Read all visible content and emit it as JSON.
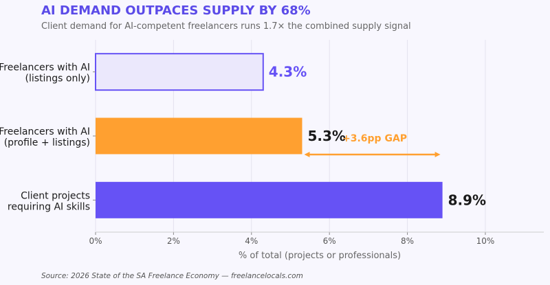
{
  "chart_data": {
    "type": "bar",
    "orientation": "horizontal",
    "title": "AI DEMAND OUTPACES SUPPLY BY 68%",
    "subtitle": "Client demand for AI-competent freelancers runs 1.7× the combined supply signal",
    "categories": [
      [
        "Freelancers with AI",
        "(listings only)"
      ],
      [
        "Freelancers with AI",
        "(profile + listings)"
      ],
      [
        "Client projects",
        "requiring AI skills"
      ]
    ],
    "values": [
      4.3,
      5.3,
      8.9
    ],
    "data_labels": [
      "4.3%",
      "5.3%",
      "8.9%"
    ],
    "colors": [
      "#ebe8fc",
      "#ffa030",
      "#6652f5"
    ],
    "edge_colors": [
      "#6652f5",
      null,
      null
    ],
    "label_colors": [
      "#6652f5",
      "#1a1a1a",
      "#1a1a1a"
    ],
    "xlabel": "% of total (projects or professionals)",
    "xlim": [
      0,
      11.5
    ],
    "xticks": [
      0,
      2,
      4,
      6,
      8,
      10
    ],
    "xtick_labels": [
      "0%",
      "2%",
      "4%",
      "6%",
      "8%",
      "10%"
    ],
    "grid": "vertical",
    "annotation": {
      "text": "+3.6pp GAP",
      "from": 5.3,
      "to": 8.9,
      "color": "#ffa030"
    }
  },
  "source": "Source: 2026 State of the SA Freelance Economy — freelancelocals.com"
}
